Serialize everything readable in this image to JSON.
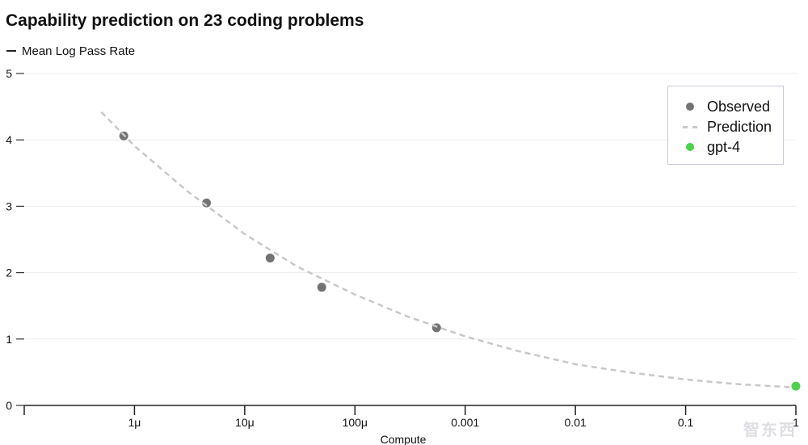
{
  "chart_data": {
    "type": "scatter",
    "title": "Capability prediction on 23 coding problems",
    "subtitle": "Mean Log Pass Rate",
    "xlabel": "Compute",
    "ylabel": "",
    "x_scale": "log",
    "xlim": [
      1e-07,
      1
    ],
    "ylim": [
      0,
      5
    ],
    "x_ticks": [
      {
        "value": 1e-06,
        "label": "1μ"
      },
      {
        "value": 1e-05,
        "label": "10μ"
      },
      {
        "value": 0.0001,
        "label": "100μ"
      },
      {
        "value": 0.001,
        "label": "0.001"
      },
      {
        "value": 0.01,
        "label": "0.01"
      },
      {
        "value": 0.1,
        "label": "0.1"
      },
      {
        "value": 1,
        "label": "1"
      }
    ],
    "y_ticks": [
      0,
      1,
      2,
      3,
      4,
      5
    ],
    "grid": "horizontal",
    "legend_position": "top-right",
    "series": [
      {
        "name": "Observed",
        "kind": "points",
        "color": "#737373",
        "x": [
          8e-07,
          4.5e-06,
          1.7e-05,
          5e-05,
          0.00055
        ],
        "y": [
          4.06,
          3.05,
          2.22,
          1.78,
          1.17
        ]
      },
      {
        "name": "Prediction",
        "kind": "dashed-line",
        "color": "#c8c8c8",
        "x": [
          5e-07,
          1e-06,
          3e-06,
          1e-05,
          3e-05,
          0.0001,
          0.0003,
          0.001,
          0.003,
          0.01,
          0.03,
          0.1,
          0.3,
          1
        ],
        "y": [
          4.42,
          3.91,
          3.23,
          2.58,
          2.09,
          1.67,
          1.34,
          1.04,
          0.82,
          0.62,
          0.5,
          0.39,
          0.32,
          0.27
        ]
      },
      {
        "name": "gpt-4",
        "kind": "points",
        "color": "#4dd24d",
        "x": [
          1
        ],
        "y": [
          0.29
        ]
      }
    ]
  },
  "watermark": "智东西"
}
